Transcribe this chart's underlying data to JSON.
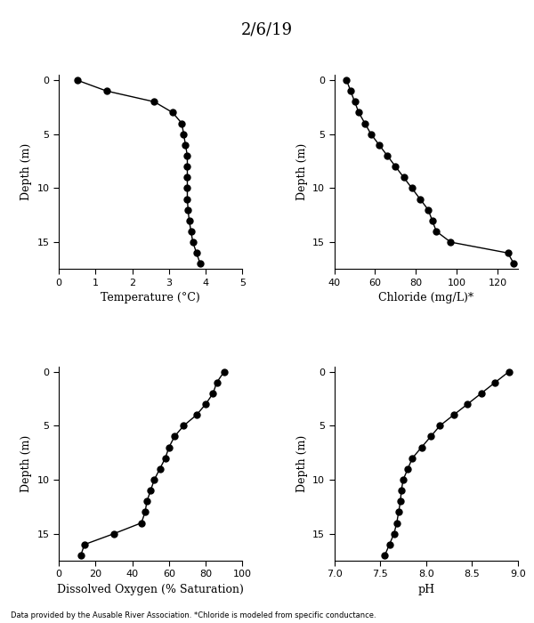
{
  "title": "2/6/19",
  "footnote": "Data provided by the Ausable River Association. *Chloride is modeled from specific conductance.",
  "temp_depth": [
    0,
    1,
    2,
    3,
    4,
    5,
    6,
    7,
    8,
    9,
    10,
    11,
    12,
    13,
    14,
    15,
    16,
    17
  ],
  "temp_vals": [
    0.5,
    1.3,
    2.6,
    3.1,
    3.35,
    3.4,
    3.45,
    3.5,
    3.5,
    3.5,
    3.5,
    3.5,
    3.52,
    3.55,
    3.6,
    3.65,
    3.75,
    3.85
  ],
  "temp_xlim": [
    0,
    5
  ],
  "temp_xticks": [
    0,
    1,
    2,
    3,
    4,
    5
  ],
  "temp_xlabel": "Temperature (°C)",
  "temp_ylim": [
    17.5,
    -0.5
  ],
  "temp_yticks": [
    0,
    5,
    10,
    15
  ],
  "chloride_depth": [
    0,
    1,
    2,
    3,
    4,
    5,
    6,
    7,
    8,
    9,
    10,
    11,
    12,
    13,
    14,
    15,
    16,
    17
  ],
  "chloride_vals": [
    46,
    48,
    50,
    52,
    55,
    58,
    62,
    66,
    70,
    74,
    78,
    82,
    86,
    88,
    90,
    97,
    125,
    128
  ],
  "chloride_xlim": [
    40,
    130
  ],
  "chloride_xticks": [
    40,
    60,
    80,
    100,
    120
  ],
  "chloride_xlabel": "Chloride (mg/L)*",
  "chloride_ylim": [
    17.5,
    -0.5
  ],
  "chloride_yticks": [
    0,
    5,
    10,
    15
  ],
  "do_depth": [
    0,
    1,
    2,
    3,
    4,
    5,
    6,
    7,
    8,
    9,
    10,
    11,
    12,
    13,
    14,
    15,
    16,
    17
  ],
  "do_vals": [
    90,
    86,
    84,
    80,
    75,
    68,
    63,
    60,
    58,
    55,
    52,
    50,
    48,
    47,
    45,
    30,
    14,
    12
  ],
  "do_xlim": [
    0,
    100
  ],
  "do_xticks": [
    0,
    20,
    40,
    60,
    80,
    100
  ],
  "do_xlabel": "Dissolved Oxygen (% Saturation)",
  "do_ylim": [
    17.5,
    -0.5
  ],
  "do_yticks": [
    0,
    5,
    10,
    15
  ],
  "ph_depth": [
    0,
    1,
    2,
    3,
    4,
    5,
    6,
    7,
    8,
    9,
    10,
    11,
    12,
    13,
    14,
    15,
    16,
    17
  ],
  "ph_vals": [
    8.9,
    8.75,
    8.6,
    8.45,
    8.3,
    8.15,
    8.05,
    7.95,
    7.85,
    7.8,
    7.75,
    7.73,
    7.72,
    7.7,
    7.68,
    7.65,
    7.6,
    7.55
  ],
  "ph_xlim": [
    7.0,
    9.0
  ],
  "ph_xticks": [
    7.0,
    7.5,
    8.0,
    8.5,
    9.0
  ],
  "ph_xlabel": "pH",
  "ph_ylim": [
    17.5,
    -0.5
  ],
  "ph_yticks": [
    0,
    5,
    10,
    15
  ],
  "ylabel": "Depth (m)",
  "line_color": "black",
  "marker": "o",
  "markersize": 5,
  "linewidth": 1.0
}
